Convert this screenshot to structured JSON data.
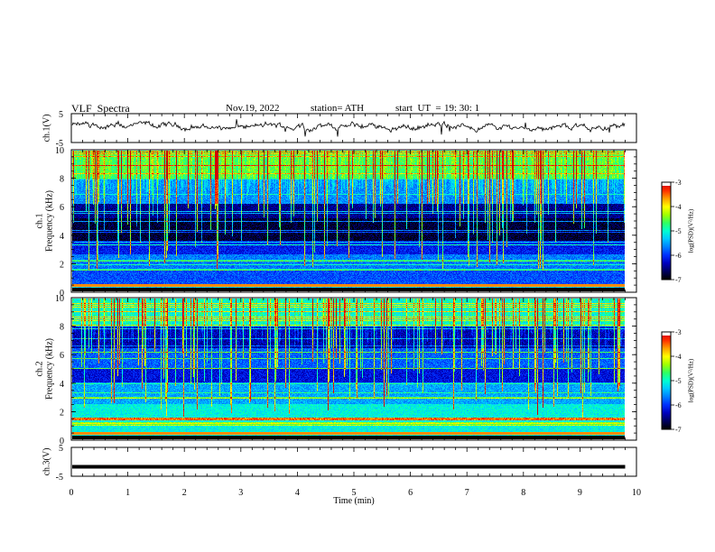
{
  "header": {
    "title": "VLF  Spectra",
    "date": "Nov.19, 2022",
    "station": "station= ATH",
    "start_label": "start  UT  =",
    "start_time": "19: 30: 1"
  },
  "colormap": [
    "#000000",
    "#000060",
    "#0000c0",
    "#0030ff",
    "#0080ff",
    "#00c8ff",
    "#00ffd0",
    "#30ff60",
    "#a0ff00",
    "#ffff00",
    "#ffa000",
    "#ff3000",
    "#d00000",
    "#ffffff"
  ],
  "chart_data": [
    {
      "id": "ch1-waveform",
      "type": "line",
      "ylabel": "ch.1(V)",
      "yticklabels": [
        "5",
        "-5"
      ],
      "ylim": [
        -5,
        5
      ],
      "xlim": [
        0,
        10
      ],
      "series": [
        {
          "description_level": 0.5,
          "x_end": 9.8
        }
      ]
    },
    {
      "id": "ch1-spectrogram",
      "type": "heatmap",
      "ylabel_top": "ch.1",
      "ylabel": "Frequency  (kHz)",
      "yticks": [
        "0",
        "2",
        "4",
        "6",
        "8",
        "10"
      ],
      "ylim": [
        0,
        10
      ],
      "xlim": [
        0,
        10
      ],
      "x_end": 9.8,
      "colorbar": {
        "label": "log(PSD)(V²/Hz)",
        "ticks": [
          "-3",
          "-4",
          "-5",
          "-6",
          "-7"
        ],
        "range": [
          -7,
          -3
        ]
      }
    },
    {
      "id": "ch2-spectrogram",
      "type": "heatmap",
      "ylabel_top": "ch.2",
      "ylabel": "Frequency  (kHz)",
      "yticks": [
        "0",
        "2",
        "4",
        "6",
        "8",
        "10"
      ],
      "ylim": [
        0,
        10
      ],
      "xlim": [
        0,
        10
      ],
      "x_end": 9.8,
      "colorbar": {
        "label": "log(PSD)(V²/Hz)",
        "ticks": [
          "-3",
          "-4",
          "-5",
          "-6",
          "-7"
        ],
        "range": [
          -7,
          -3
        ]
      }
    },
    {
      "id": "ch3-waveform",
      "type": "line",
      "ylabel": "ch.3(V)",
      "yticklabels": [
        "5",
        "-5"
      ],
      "ylim": [
        -5,
        5
      ],
      "xlim": [
        0,
        10
      ],
      "series": [
        {
          "level": -1.7,
          "x_end": 9.8
        }
      ]
    }
  ],
  "xaxis": {
    "label": "Time  (min)",
    "ticks": [
      "0",
      "1",
      "2",
      "3",
      "4",
      "5",
      "6",
      "7",
      "8",
      "9",
      "10"
    ],
    "range": [
      0,
      10
    ]
  }
}
